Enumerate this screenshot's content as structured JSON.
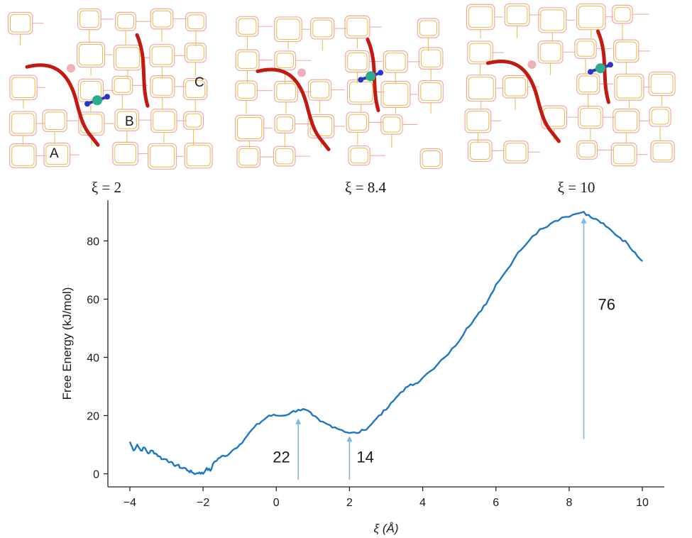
{
  "chart_data": {
    "type": "line",
    "xlabel": "ξ (Å)",
    "ylabel": "Free Energy (kJ/mol)",
    "xlim": [
      -4.6,
      10.6
    ],
    "ylim": [
      -4.5,
      94
    ],
    "grid": false,
    "xticks": [
      -4,
      -2,
      0,
      2,
      4,
      6,
      8,
      10
    ],
    "xtick_labels": [
      "−4",
      "−2",
      "0",
      "2",
      "4",
      "6",
      "8",
      "10"
    ],
    "yticks": [
      0,
      20,
      40,
      60,
      80
    ],
    "ytick_labels": [
      "0",
      "20",
      "40",
      "60",
      "80"
    ],
    "line_color": "#1f77c4",
    "arrow_color": "#7ab8e0",
    "series": [
      {
        "x": [
          -4.0,
          -3.9,
          -3.8,
          -3.7,
          -3.6,
          -3.5,
          -3.4,
          -3.3,
          -3.2,
          -3.1,
          -3.0,
          -2.9,
          -2.8,
          -2.7,
          -2.6,
          -2.5,
          -2.4,
          -2.3,
          -2.2,
          -2.1,
          -2.0,
          -1.9,
          -1.8,
          -1.7,
          -1.6,
          -1.5,
          -1.4,
          -1.2,
          -1.0,
          -0.8,
          -0.6,
          -0.4,
          -0.2,
          0.0,
          0.2,
          0.4,
          0.6,
          0.8,
          1.0,
          1.2,
          1.4,
          1.6,
          1.8,
          2.0,
          2.2,
          2.4,
          2.6,
          2.8,
          3.0,
          3.2,
          3.4,
          3.6,
          3.8,
          4.0,
          4.3,
          4.6,
          4.9,
          5.2,
          5.4,
          5.6,
          5.8,
          6.0,
          6.3,
          6.6,
          6.9,
          7.2,
          7.5,
          7.8,
          8.1,
          8.4,
          8.6,
          8.8,
          9.0,
          9.2,
          9.4,
          9.6,
          9.8,
          10.0
        ],
        "y": [
          11,
          8,
          10,
          8,
          9,
          7,
          8,
          7,
          6,
          5,
          5,
          4,
          3,
          3,
          2,
          2,
          1,
          0.5,
          0,
          0.5,
          0,
          2,
          1,
          4,
          5,
          6,
          6,
          8,
          10,
          13,
          16,
          18,
          20,
          20,
          20,
          21,
          22,
          22,
          20,
          18,
          17,
          16,
          15,
          14,
          14,
          15,
          17,
          20,
          22,
          25,
          28,
          30,
          31,
          33,
          36,
          40,
          44,
          50,
          53,
          56,
          60,
          65,
          70,
          76,
          80,
          84,
          86,
          88,
          89,
          90,
          88,
          87,
          85,
          83,
          81,
          79,
          76,
          73
        ]
      }
    ],
    "annotations": [
      {
        "text": "22",
        "x": 0.6,
        "y_top": 19,
        "y_base": -2
      },
      {
        "text": "14",
        "x": 2.0,
        "y_top": 13,
        "y_base": -2
      },
      {
        "text": "76",
        "x": 8.4,
        "y_top": 88,
        "y_base": 12
      }
    ],
    "panels": [
      {
        "caption": "ξ = 2",
        "labels": [
          "A",
          "B",
          "C"
        ]
      },
      {
        "caption": "ξ = 8.4"
      },
      {
        "caption": "ξ = 10"
      }
    ],
    "framework_colors": {
      "ring": "#f6a8a0",
      "bond": "#e8bd45",
      "path": "#c21a10",
      "pink": "#f0b0b8",
      "n": "#2a36c8",
      "c": "#2dab8a"
    }
  }
}
